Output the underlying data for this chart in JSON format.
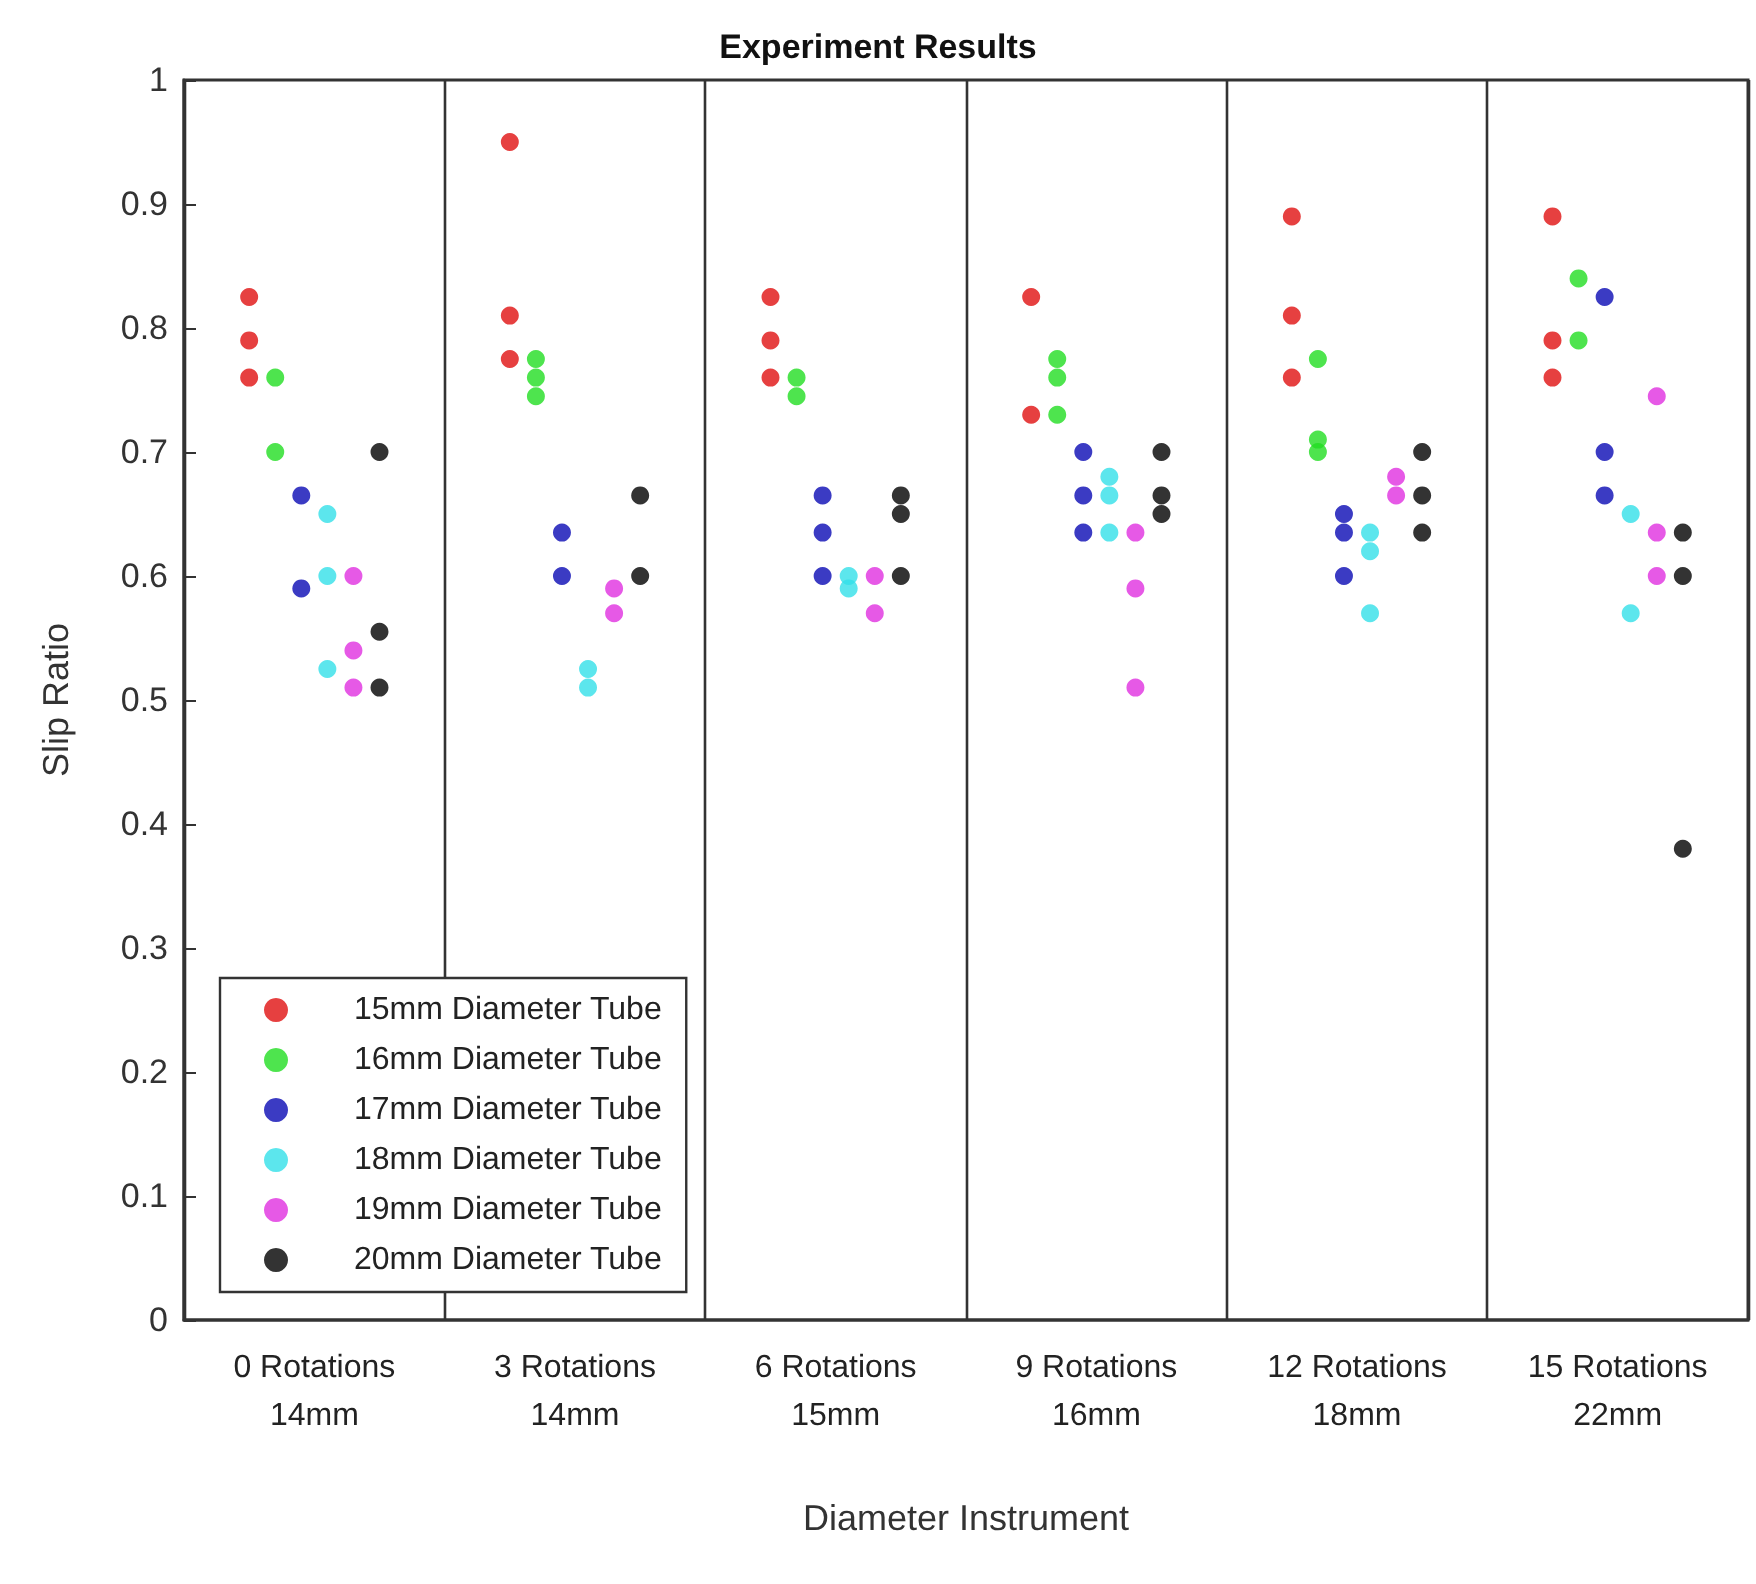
{
  "chart_data": {
    "type": "scatter",
    "title": "Experiment Results",
    "xlabel": "Diameter Instrument",
    "ylabel": "Slip Ratio",
    "categories": [
      "0 Rotations\n14mm",
      "3 Rotations\n14mm",
      "6 Rotations\n15mm",
      "9 Rotations\n16mm",
      "12 Rotations\n18mm",
      "15 Rotations\n22mm"
    ],
    "series": [
      {
        "name": "15mm Diameter Tube",
        "color": "#e01010",
        "x": [
          "0 Rotations\n14mm",
          "0 Rotations\n14mm",
          "0 Rotations\n14mm",
          "3 Rotations\n14mm",
          "3 Rotations\n14mm",
          "3 Rotations\n14mm",
          "6 Rotations\n15mm",
          "6 Rotations\n15mm",
          "6 Rotations\n15mm",
          "9 Rotations\n16mm",
          "9 Rotations\n16mm",
          "12 Rotations\n18mm",
          "12 Rotations\n18mm",
          "12 Rotations\n18mm",
          "15 Rotations\n22mm",
          "15 Rotations\n22mm",
          "15 Rotations\n22mm"
        ],
        "values": [
          0.825,
          0.79,
          0.76,
          0.95,
          0.81,
          0.775,
          0.825,
          0.79,
          0.76,
          0.825,
          0.73,
          0.89,
          0.81,
          0.76,
          0.89,
          0.79,
          0.76
        ]
      },
      {
        "name": "16mm Diameter Tube",
        "color": "#22dd22",
        "x": [
          "0 Rotations\n14mm",
          "0 Rotations\n14mm",
          "3 Rotations\n14mm",
          "3 Rotations\n14mm",
          "3 Rotations\n14mm",
          "6 Rotations\n15mm",
          "6 Rotations\n15mm",
          "9 Rotations\n16mm",
          "9 Rotations\n16mm",
          "9 Rotations\n16mm",
          "12 Rotations\n18mm",
          "12 Rotations\n18mm",
          "12 Rotations\n18mm",
          "15 Rotations\n22mm",
          "15 Rotations\n22mm"
        ],
        "values": [
          0.76,
          0.7,
          0.775,
          0.76,
          0.745,
          0.76,
          0.745,
          0.775,
          0.76,
          0.73,
          0.775,
          0.71,
          0.7,
          0.84,
          0.79
        ]
      },
      {
        "name": "17mm Diameter Tube",
        "color": "#0a0ab4",
        "x": [
          "0 Rotations\n14mm",
          "0 Rotations\n14mm",
          "3 Rotations\n14mm",
          "3 Rotations\n14mm",
          "6 Rotations\n15mm",
          "6 Rotations\n15mm",
          "6 Rotations\n15mm",
          "9 Rotations\n16mm",
          "9 Rotations\n16mm",
          "9 Rotations\n16mm",
          "12 Rotations\n18mm",
          "12 Rotations\n18mm",
          "12 Rotations\n18mm",
          "15 Rotations\n22mm",
          "15 Rotations\n22mm",
          "15 Rotations\n22mm"
        ],
        "values": [
          0.665,
          0.59,
          0.635,
          0.6,
          0.665,
          0.635,
          0.6,
          0.7,
          0.665,
          0.635,
          0.65,
          0.635,
          0.6,
          0.825,
          0.7,
          0.665
        ]
      },
      {
        "name": "18mm Diameter Tube",
        "color": "#33e0e8",
        "x": [
          "0 Rotations\n14mm",
          "0 Rotations\n14mm",
          "0 Rotations\n14mm",
          "3 Rotations\n14mm",
          "3 Rotations\n14mm",
          "6 Rotations\n15mm",
          "6 Rotations\n15mm",
          "9 Rotations\n16mm",
          "9 Rotations\n16mm",
          "9 Rotations\n16mm",
          "12 Rotations\n18mm",
          "12 Rotations\n18mm",
          "12 Rotations\n18mm",
          "15 Rotations\n22mm",
          "15 Rotations\n22mm"
        ],
        "values": [
          0.65,
          0.6,
          0.525,
          0.525,
          0.51,
          0.6,
          0.59,
          0.68,
          0.665,
          0.635,
          0.635,
          0.62,
          0.57,
          0.65,
          0.57
        ]
      },
      {
        "name": "19mm Diameter Tube",
        "color": "#e030e0",
        "x": [
          "0 Rotations\n14mm",
          "0 Rotations\n14mm",
          "0 Rotations\n14mm",
          "3 Rotations\n14mm",
          "3 Rotations\n14mm",
          "6 Rotations\n15mm",
          "6 Rotations\n15mm",
          "9 Rotations\n16mm",
          "9 Rotations\n16mm",
          "9 Rotations\n16mm",
          "12 Rotations\n18mm",
          "12 Rotations\n18mm",
          "15 Rotations\n22mm",
          "15 Rotations\n22mm",
          "15 Rotations\n22mm"
        ],
        "values": [
          0.6,
          0.54,
          0.51,
          0.59,
          0.57,
          0.6,
          0.57,
          0.635,
          0.59,
          0.51,
          0.68,
          0.665,
          0.745,
          0.635,
          0.6
        ]
      },
      {
        "name": "20mm Diameter Tube",
        "color": "#000000",
        "x": [
          "0 Rotations\n14mm",
          "0 Rotations\n14mm",
          "0 Rotations\n14mm",
          "3 Rotations\n14mm",
          "3 Rotations\n14mm",
          "6 Rotations\n15mm",
          "6 Rotations\n15mm",
          "6 Rotations\n15mm",
          "9 Rotations\n16mm",
          "9 Rotations\n16mm",
          "9 Rotations\n16mm",
          "12 Rotations\n18mm",
          "12 Rotations\n18mm",
          "12 Rotations\n18mm",
          "15 Rotations\n22mm",
          "15 Rotations\n22mm",
          "15 Rotations\n22mm"
        ],
        "values": [
          0.7,
          0.555,
          0.51,
          0.665,
          0.6,
          0.665,
          0.65,
          0.6,
          0.7,
          0.665,
          0.65,
          0.7,
          0.665,
          0.635,
          0.635,
          0.6,
          0.38
        ]
      }
    ],
    "ylim": [
      0,
      1
    ],
    "yticks": [
      0,
      0.1,
      0.2,
      0.3,
      0.4,
      0.5,
      0.6,
      0.7,
      0.8,
      0.9,
      1
    ],
    "grid": "x",
    "legend": "bottom left",
    "marker": "circle"
  }
}
